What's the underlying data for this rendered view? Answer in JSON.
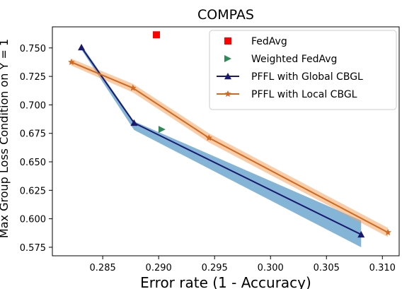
{
  "chart_data": {
    "type": "line",
    "title": "COMPAS",
    "xlabel": "Error rate (1 - Accuracy)",
    "ylabel": "Max Group Loss Condition on Y = 1",
    "xlim": [
      0.2805,
      0.3115
    ],
    "ylim": [
      0.5675,
      0.7685
    ],
    "x_ticks": [
      0.285,
      0.29,
      0.295,
      0.3,
      0.305,
      0.31
    ],
    "x_tick_labels": [
      "0.285",
      "0.290",
      "0.295",
      "0.300",
      "0.305",
      "0.310"
    ],
    "y_ticks": [
      0.575,
      0.6,
      0.625,
      0.65,
      0.675,
      0.7,
      0.725,
      0.75
    ],
    "y_tick_labels": [
      "0.575",
      "0.600",
      "0.625",
      "0.650",
      "0.675",
      "0.700",
      "0.725",
      "0.750"
    ],
    "grid": false,
    "legend_position": "top-right",
    "series": [
      {
        "name": "FedAvg",
        "kind": "scatter",
        "marker": "square",
        "color": "#ff0000",
        "points": [
          {
            "x": 0.2898,
            "y": 0.7615
          }
        ]
      },
      {
        "name": "Weighted FedAvg",
        "kind": "scatter",
        "marker": "triangle-right",
        "color": "#2e8b57",
        "points": [
          {
            "x": 0.2903,
            "y": 0.6785
          }
        ]
      },
      {
        "name": "PFFL with Global CBGL",
        "kind": "line",
        "marker": "triangle-up",
        "color": "#191970",
        "band_color": "#1f77b4",
        "points": [
          {
            "x": 0.2831,
            "y": 0.7505
          },
          {
            "x": 0.2878,
            "y": 0.6842
          },
          {
            "x": 0.3081,
            "y": 0.5862
          }
        ],
        "band": [
          {
            "x": 0.2831,
            "lo": 0.7485,
            "hi": 0.7525
          },
          {
            "x": 0.2878,
            "lo": 0.678,
            "hi": 0.6855
          },
          {
            "x": 0.3081,
            "lo": 0.575,
            "hi": 0.5985
          }
        ]
      },
      {
        "name": "PFFL with Local CBGL",
        "kind": "line",
        "marker": "star",
        "color": "#d2691e",
        "band_color": "#f4a460",
        "points": [
          {
            "x": 0.2822,
            "y": 0.7375
          },
          {
            "x": 0.2877,
            "y": 0.7148
          },
          {
            "x": 0.2945,
            "y": 0.671
          },
          {
            "x": 0.3105,
            "y": 0.588
          }
        ],
        "band": [
          {
            "x": 0.2822,
            "lo": 0.7345,
            "hi": 0.7405
          },
          {
            "x": 0.2877,
            "lo": 0.711,
            "hi": 0.7185
          },
          {
            "x": 0.2945,
            "lo": 0.667,
            "hi": 0.675
          },
          {
            "x": 0.3105,
            "lo": 0.584,
            "hi": 0.592
          }
        ]
      }
    ]
  }
}
